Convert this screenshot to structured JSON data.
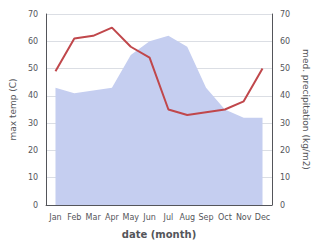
{
  "chart_data": {
    "type": "line",
    "xlabel": "date (month)",
    "ylabel": "max temp (C)",
    "y2label": "med. precipitation (kg/m2)",
    "categories": [
      "Jan",
      "Feb",
      "Mar",
      "Apr",
      "May",
      "Jun",
      "Jul",
      "Aug",
      "Sep",
      "Oct",
      "Nov",
      "Dec"
    ],
    "series": [
      {
        "type": "line",
        "color": "#c0474b",
        "values": [
          49,
          61,
          62,
          65,
          58,
          54,
          35,
          33,
          34,
          35,
          38,
          50
        ]
      },
      {
        "type": "area",
        "axis": "y2",
        "color": "#c5cef0",
        "values": [
          43,
          41,
          42,
          43,
          55,
          60,
          62,
          58,
          43,
          35,
          32,
          32
        ]
      }
    ],
    "ylim": [
      0,
      70
    ],
    "yticks": [
      0,
      10,
      20,
      30,
      40,
      50,
      60,
      70
    ],
    "y2lim": [
      0,
      70
    ],
    "y2ticks": [
      0,
      10,
      20,
      30,
      40,
      50,
      60,
      70
    ],
    "grid": true
  }
}
